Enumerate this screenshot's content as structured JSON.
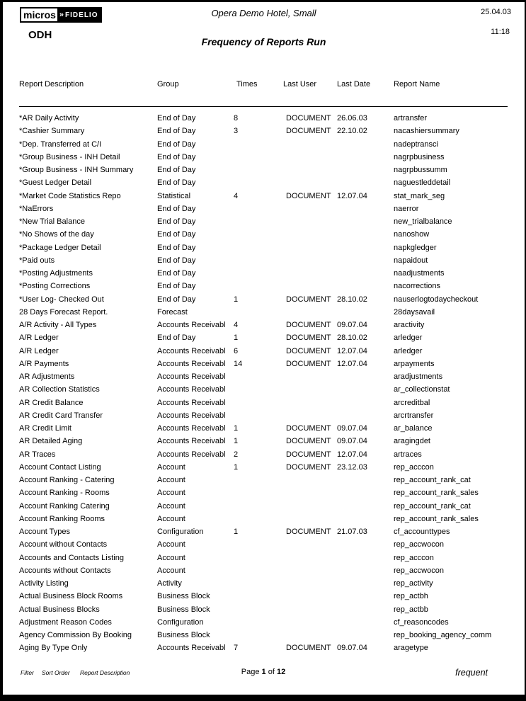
{
  "page": {
    "logo": {
      "micros": "micros",
      "chevron": "»",
      "fidelio": "FIDELIO"
    },
    "property_code": "ODH",
    "hotel_name": "Opera Demo Hotel, Small",
    "report_title": "Frequency of Reports Run",
    "date": "25.04.03",
    "time": "11:18"
  },
  "table": {
    "columns": [
      "Report Description",
      "Group",
      "Times",
      "Last User",
      "Last Date",
      "Report Name"
    ],
    "rows": [
      [
        "*AR Daily Activity",
        "End of Day",
        "8",
        "DOCUMENT",
        "26.06.03",
        "artransfer"
      ],
      [
        "*Cashier Summary",
        "End of Day",
        "3",
        "DOCUMENT",
        "22.10.02",
        "nacashiersummary"
      ],
      [
        "*Dep. Transferred at C/I",
        "End of Day",
        "",
        "",
        "",
        "nadeptransci"
      ],
      [
        "*Group Business - INH Detail",
        "End of Day",
        "",
        "",
        "",
        "nagrpbusiness"
      ],
      [
        "*Group Business - INH Summary",
        "End of Day",
        "",
        "",
        "",
        "nagrpbussumm"
      ],
      [
        "*Guest Ledger Detail",
        "End of Day",
        "",
        "",
        "",
        "naguestleddetail"
      ],
      [
        "*Market Code Statistics Repo",
        "Statistical",
        "4",
        "DOCUMENT",
        "12.07.04",
        "stat_mark_seg"
      ],
      [
        "*NaErrors",
        "End of Day",
        "",
        "",
        "",
        "naerror"
      ],
      [
        "*New Trial Balance",
        "End of Day",
        "",
        "",
        "",
        "new_trialbalance"
      ],
      [
        "*No Shows of the day",
        "End of Day",
        "",
        "",
        "",
        "nanoshow"
      ],
      [
        "*Package Ledger Detail",
        "End of Day",
        "",
        "",
        "",
        "napkgledger"
      ],
      [
        "*Paid outs",
        "End of Day",
        "",
        "",
        "",
        "napaidout"
      ],
      [
        "*Posting Adjustments",
        "End of Day",
        "",
        "",
        "",
        "naadjustments"
      ],
      [
        "*Posting Corrections",
        "End of Day",
        "",
        "",
        "",
        "nacorrections"
      ],
      [
        "*User Log- Checked Out",
        "End of Day",
        "1",
        "DOCUMENT",
        "28.10.02",
        "nauserlogtodaycheckout"
      ],
      [
        "28 Days Forecast Report.",
        "Forecast",
        "",
        "",
        "",
        "28daysavail"
      ],
      [
        "A/R Activity - All Types",
        "Accounts Receivabl",
        "4",
        "DOCUMENT",
        "09.07.04",
        "aractivity"
      ],
      [
        "A/R Ledger",
        "End of Day",
        "1",
        "DOCUMENT",
        "28.10.02",
        "arledger"
      ],
      [
        "A/R Ledger",
        "Accounts Receivabl",
        "6",
        "DOCUMENT",
        "12.07.04",
        "arledger"
      ],
      [
        "A/R Payments",
        "Accounts Receivabl",
        "14",
        "DOCUMENT",
        "12.07.04",
        "arpayments"
      ],
      [
        "AR Adjustments",
        "Accounts Receivabl",
        "",
        "",
        "",
        "aradjustments"
      ],
      [
        "AR Collection Statistics",
        "Accounts Receivabl",
        "",
        "",
        "",
        "ar_collectionstat"
      ],
      [
        "AR Credit Balance",
        "Accounts Receivabl",
        "",
        "",
        "",
        "arcreditbal"
      ],
      [
        "AR Credit Card Transfer",
        "Accounts Receivabl",
        "",
        "",
        "",
        "arcrtransfer"
      ],
      [
        "AR Credit Limit",
        "Accounts Receivabl",
        "1",
        "DOCUMENT",
        "09.07.04",
        "ar_balance"
      ],
      [
        "AR Detailed Aging",
        "Accounts Receivabl",
        "1",
        "DOCUMENT",
        "09.07.04",
        "aragingdet"
      ],
      [
        "AR Traces",
        "Accounts Receivabl",
        "2",
        "DOCUMENT",
        "12.07.04",
        "artraces"
      ],
      [
        "Account Contact Listing",
        "Account",
        "1",
        "DOCUMENT",
        "23.12.03",
        "rep_acccon"
      ],
      [
        "Account Ranking - Catering",
        "Account",
        "",
        "",
        "",
        "rep_account_rank_cat"
      ],
      [
        "Account Ranking - Rooms",
        "Account",
        "",
        "",
        "",
        "rep_account_rank_sales"
      ],
      [
        "Account Ranking Catering",
        "Account",
        "",
        "",
        "",
        "rep_account_rank_cat"
      ],
      [
        "Account Ranking Rooms",
        "Account",
        "",
        "",
        "",
        "rep_account_rank_sales"
      ],
      [
        "Account Types",
        "Configuration",
        "1",
        "DOCUMENT",
        "21.07.03",
        "cf_accounttypes"
      ],
      [
        "Account without Contacts",
        "Account",
        "",
        "",
        "",
        "rep_accwocon"
      ],
      [
        "Accounts and Contacts Listing",
        "Account",
        "",
        "",
        "",
        "rep_acccon"
      ],
      [
        "Accounts without Contacts",
        "Account",
        "",
        "",
        "",
        "rep_accwocon"
      ],
      [
        "Activity Listing",
        "Activity",
        "",
        "",
        "",
        "rep_activity"
      ],
      [
        "Actual Business Block Rooms",
        "Business Block",
        "",
        "",
        "",
        "rep_actbh"
      ],
      [
        "Actual Business Blocks",
        "Business Block",
        "",
        "",
        "",
        "rep_actbb"
      ],
      [
        "Adjustment Reason Codes",
        "Configuration",
        "",
        "",
        "",
        "cf_reasoncodes"
      ],
      [
        "Agency Commission By Booking",
        "Business Block",
        "",
        "",
        "",
        "rep_booking_agency_comm"
      ],
      [
        "Aging By Type Only",
        "Accounts Receivabl",
        "7",
        "DOCUMENT",
        "09.07.04",
        "aragetype"
      ]
    ]
  },
  "footer": {
    "filter_label": "Filter",
    "sort_order_label": "Sort Order",
    "sort_order_value": "Report Description",
    "page_prefix": "Page",
    "page_number": "1",
    "page_of": "of",
    "page_total": "12",
    "report_file": "frequent"
  }
}
